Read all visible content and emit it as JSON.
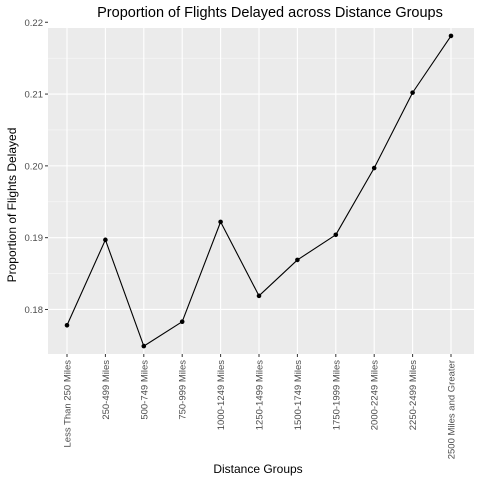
{
  "chart_data": {
    "type": "line",
    "title": "Proportion of Flights Delayed across Distance Groups",
    "xlabel": "Distance Groups",
    "ylabel": "Proportion of Flights Delayed",
    "categories": [
      "Less Than 250 Miles",
      "250-499 Miles",
      "500-749 Miles",
      "750-999 Miles",
      "1000-1249 Miles",
      "1250-1499 Miles",
      "1500-1749 Miles",
      "1750-1999 Miles",
      "2000-2249 Miles",
      "2250-2499 Miles",
      "2500 Miles and Greater"
    ],
    "values": [
      0.1778,
      0.1897,
      0.1749,
      0.1783,
      0.1922,
      0.1819,
      0.1869,
      0.1904,
      0.1997,
      0.2102,
      0.2181
    ],
    "ylim": [
      0.1738,
      0.2192
    ],
    "yticks": [
      0.18,
      0.19,
      0.2,
      0.21,
      0.22
    ],
    "ytick_labels": [
      "0.18",
      "0.19",
      "0.20",
      "0.21",
      "0.22"
    ],
    "grid": true,
    "legend": "none",
    "colors": {
      "panel": "#ebebeb",
      "grid_major": "#ffffff",
      "line": "#000000",
      "point": "#000000",
      "tick_text": "#4d4d4d"
    }
  }
}
